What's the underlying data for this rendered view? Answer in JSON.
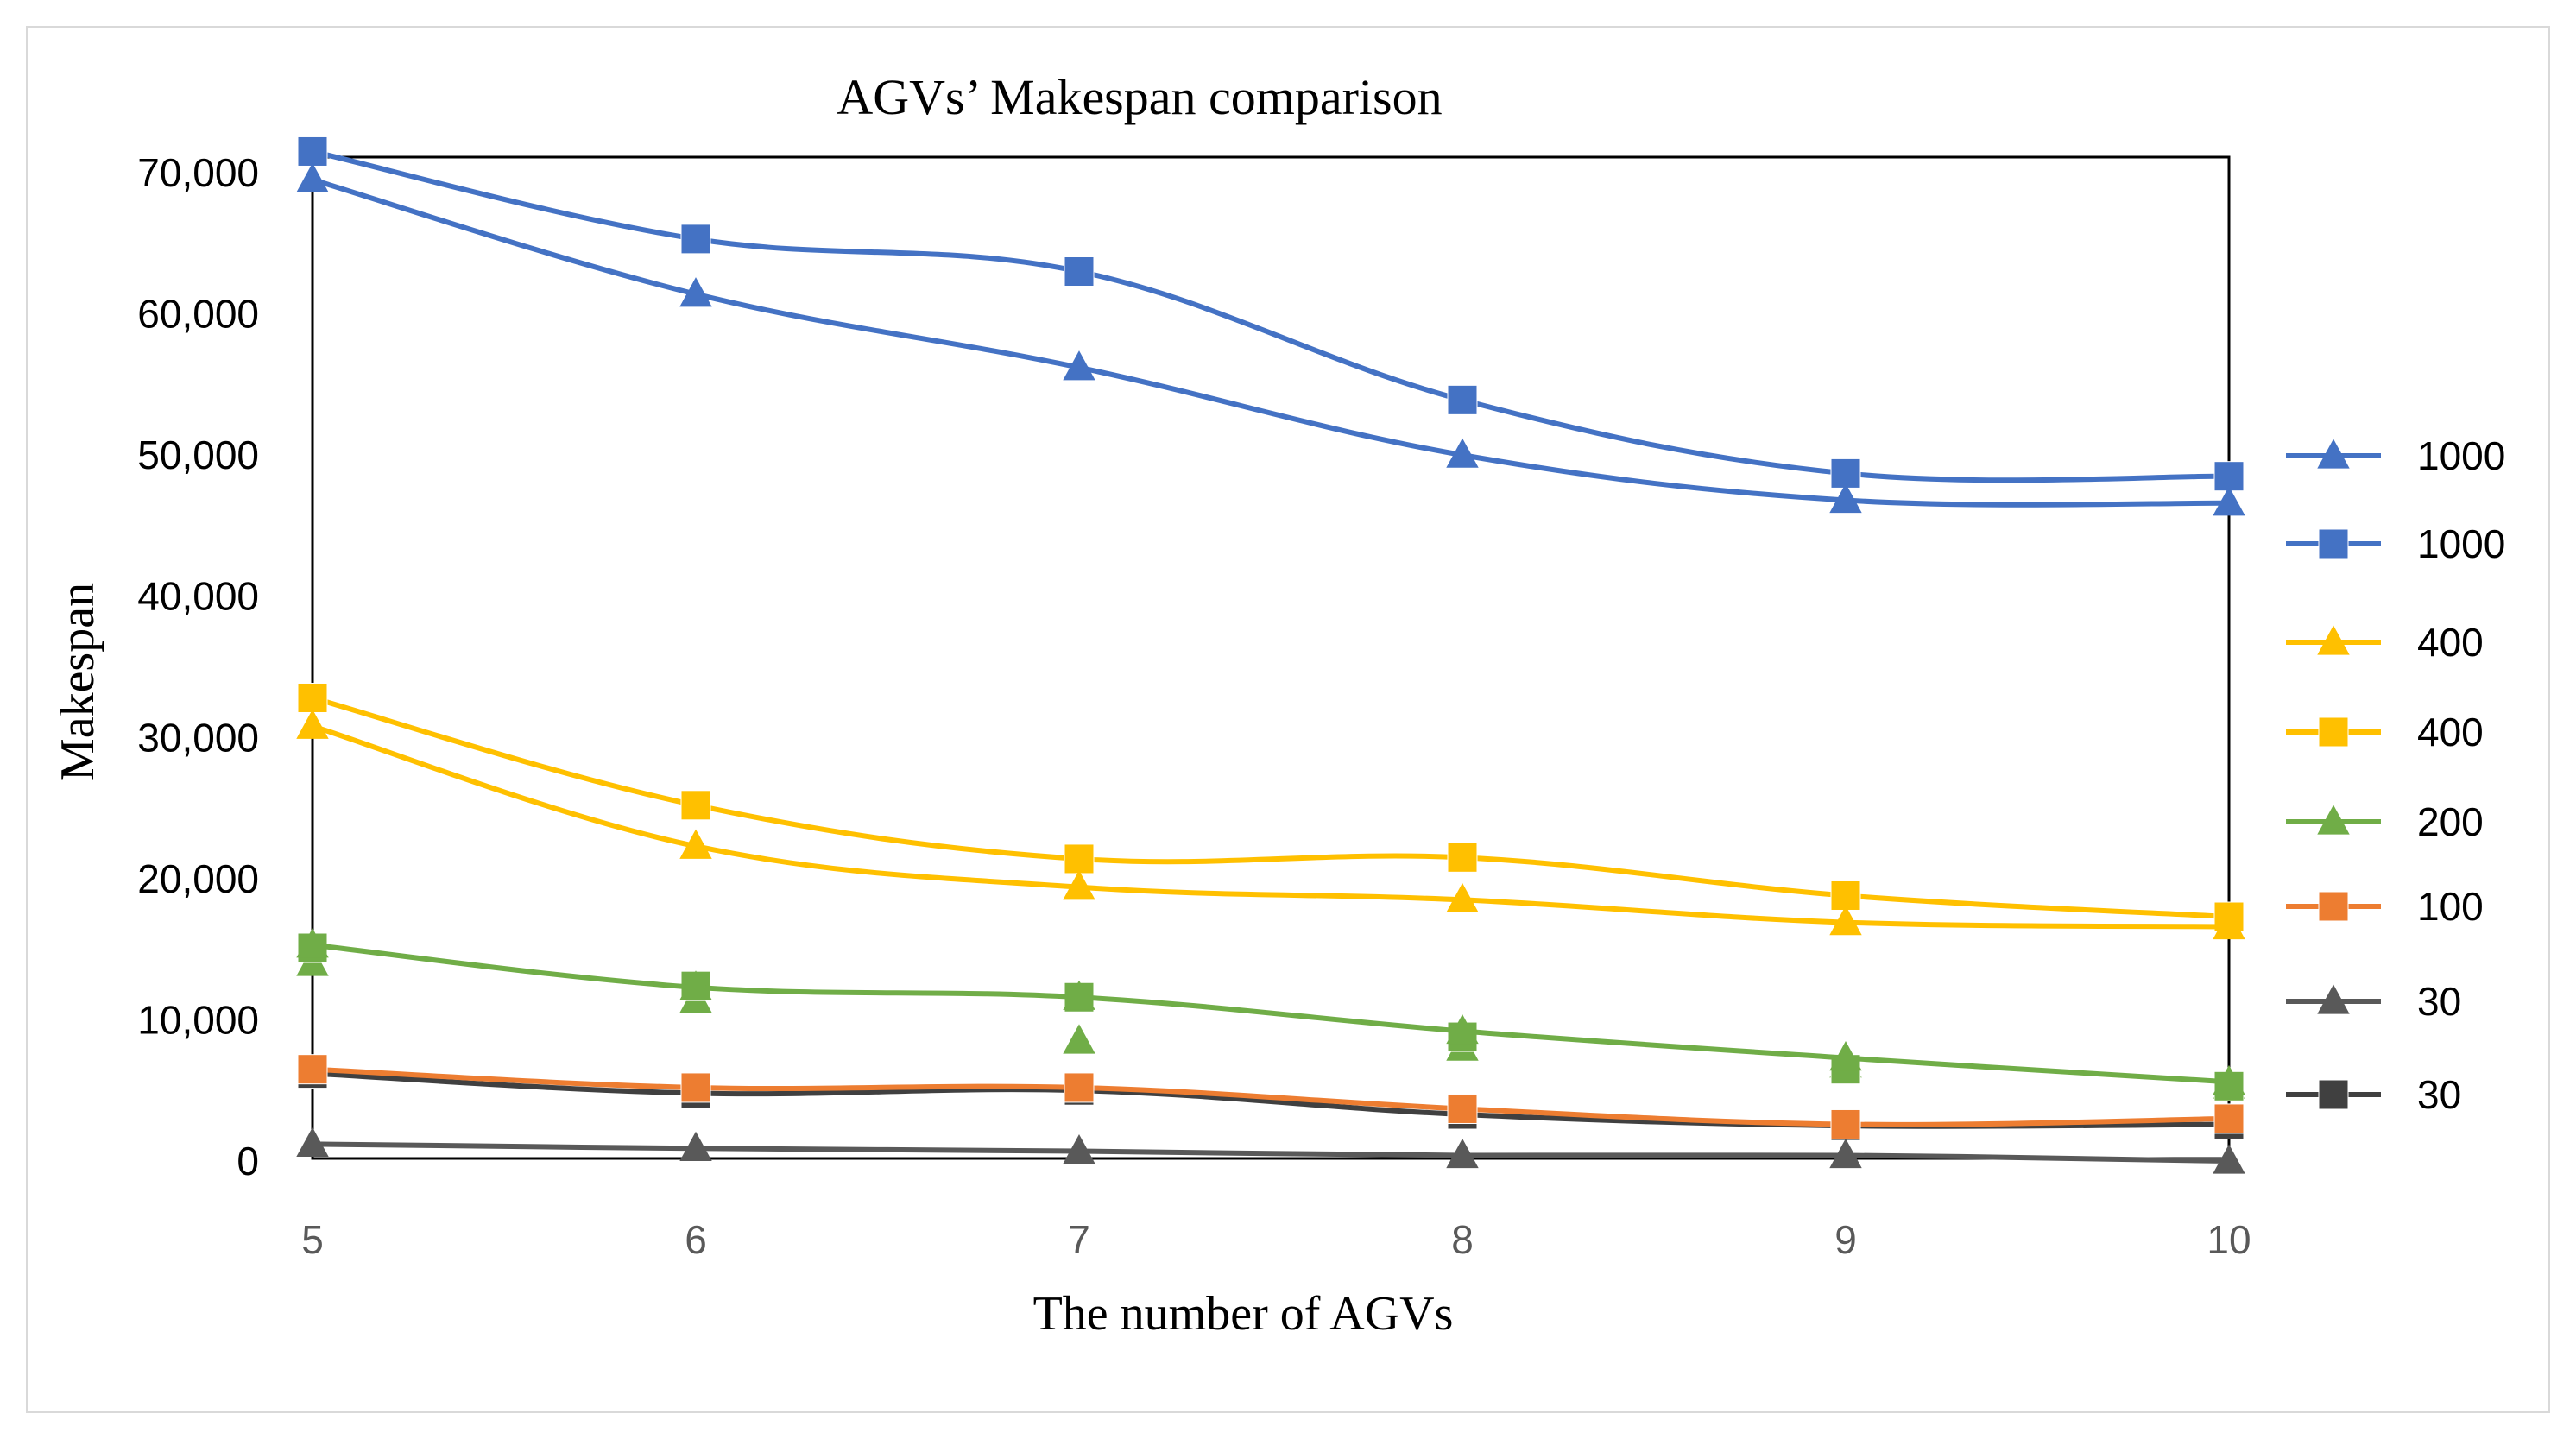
{
  "chart_data": {
    "type": "line",
    "title": "AGVs’ Makespan  comparison",
    "xlabel": "The number  of AGVs",
    "ylabel": "Makespan",
    "x": [
      5,
      6,
      7,
      8,
      9,
      10
    ],
    "ylim": [
      0,
      70000
    ],
    "yticks": [
      0,
      10000,
      20000,
      30000,
      40000,
      50000,
      60000,
      70000
    ],
    "ytick_labels": [
      "0",
      "10,000",
      "20,000",
      "30,000",
      "40,000",
      "50,000",
      "60,000",
      "70,000"
    ],
    "xtick_labels": [
      "5",
      "6",
      "7",
      "8",
      "9",
      "10"
    ],
    "grid": false,
    "legend_position": "right",
    "series": [
      {
        "name": "1000",
        "marker": "triangle",
        "color": "#4472C4",
        "values": [
          69500,
          61400,
          56200,
          50000,
          46800,
          46600
        ]
      },
      {
        "name": "1000",
        "marker": "square",
        "color": "#4472C4",
        "values": [
          71500,
          65300,
          63000,
          53900,
          48700,
          48500
        ]
      },
      {
        "name": "400",
        "marker": "triangle",
        "color": "#FFC000",
        "values": [
          30800,
          22300,
          19400,
          18500,
          16900,
          16600
        ]
      },
      {
        "name": "400",
        "marker": "square",
        "color": "#FFC000",
        "values": [
          32800,
          25200,
          21400,
          21500,
          18800,
          17300
        ]
      },
      {
        "name": "200",
        "marker": "triangle",
        "color": "#70AD47",
        "values": [
          15300,
          12300,
          11600,
          9200,
          7300,
          5600
        ]
      },
      {
        "name": "100",
        "marker": "square",
        "color": "#ED7D31",
        "values": [
          6500,
          5200,
          5200,
          3700,
          2600,
          3000
        ]
      },
      {
        "name": "30",
        "marker": "triangle",
        "color": "#595959",
        "values": [
          1200,
          900,
          700,
          400,
          400,
          0
        ]
      },
      {
        "name": "30",
        "marker": "square",
        "color": "#404040",
        "values": [
          6200,
          4800,
          5000,
          3300,
          2500,
          2600
        ]
      }
    ],
    "extra_marker_series": [
      {
        "marker": "triangle",
        "color": "#70AD47",
        "values": [
          14000,
          11400,
          8500,
          8000,
          6800,
          5300
        ]
      },
      {
        "marker": "square",
        "color": "#70AD47",
        "values": [
          15100,
          12400,
          11600,
          8800,
          6500,
          5300
        ]
      }
    ]
  }
}
